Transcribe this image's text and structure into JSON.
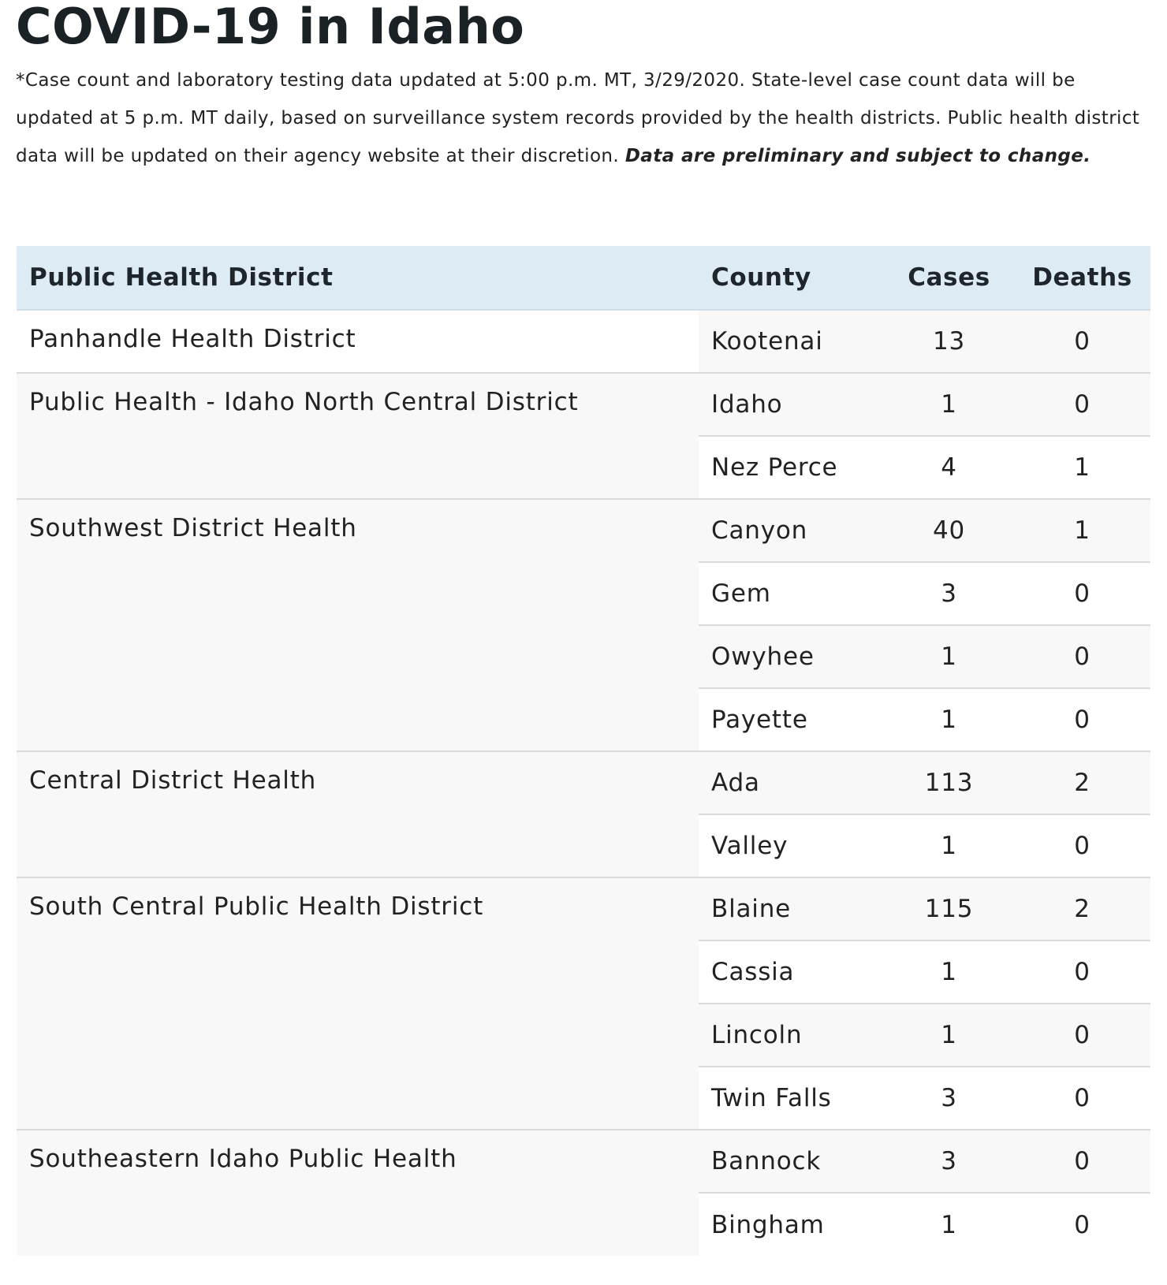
{
  "page": {
    "title": "COVID-19 in Idaho",
    "note_text": "*Case count and laboratory testing data updated at 5:00 p.m. MT, 3/29/2020. State-level case count data will be updated at 5 p.m. MT daily, based on surveillance system records provided by the health districts. Public health district data will be updated on their agency website at their discretion. ",
    "note_emphasis": "Data are preliminary and subject to change."
  },
  "table": {
    "headers": {
      "district": "Public Health District",
      "county": "County",
      "cases": "Cases",
      "deaths": "Deaths"
    },
    "groups": [
      {
        "district": "Panhandle Health District",
        "counties": [
          {
            "county": "Kootenai",
            "cases": "13",
            "deaths": "0"
          }
        ]
      },
      {
        "district": "Public Health - Idaho North Central District",
        "counties": [
          {
            "county": "Idaho",
            "cases": "1",
            "deaths": "0"
          },
          {
            "county": "Nez Perce",
            "cases": "4",
            "deaths": "1"
          }
        ]
      },
      {
        "district": "Southwest District Health",
        "counties": [
          {
            "county": "Canyon",
            "cases": "40",
            "deaths": "1"
          },
          {
            "county": "Gem",
            "cases": "3",
            "deaths": "0"
          },
          {
            "county": "Owyhee",
            "cases": "1",
            "deaths": "0"
          },
          {
            "county": "Payette",
            "cases": "1",
            "deaths": "0"
          }
        ]
      },
      {
        "district": "Central District Health",
        "counties": [
          {
            "county": "Ada",
            "cases": "113",
            "deaths": "2"
          },
          {
            "county": "Valley",
            "cases": "1",
            "deaths": "0"
          }
        ]
      },
      {
        "district": "South Central Public Health District",
        "counties": [
          {
            "county": "Blaine",
            "cases": "115",
            "deaths": "2"
          },
          {
            "county": "Cassia",
            "cases": "1",
            "deaths": "0"
          },
          {
            "county": "Lincoln",
            "cases": "1",
            "deaths": "0"
          },
          {
            "county": "Twin Falls",
            "cases": "3",
            "deaths": "0"
          }
        ]
      },
      {
        "district": "Southeastern Idaho Public Health",
        "counties": [
          {
            "county": "Bannock",
            "cases": "3",
            "deaths": "0"
          },
          {
            "county": "Bingham",
            "cases": "1",
            "deaths": "0"
          }
        ]
      }
    ]
  }
}
